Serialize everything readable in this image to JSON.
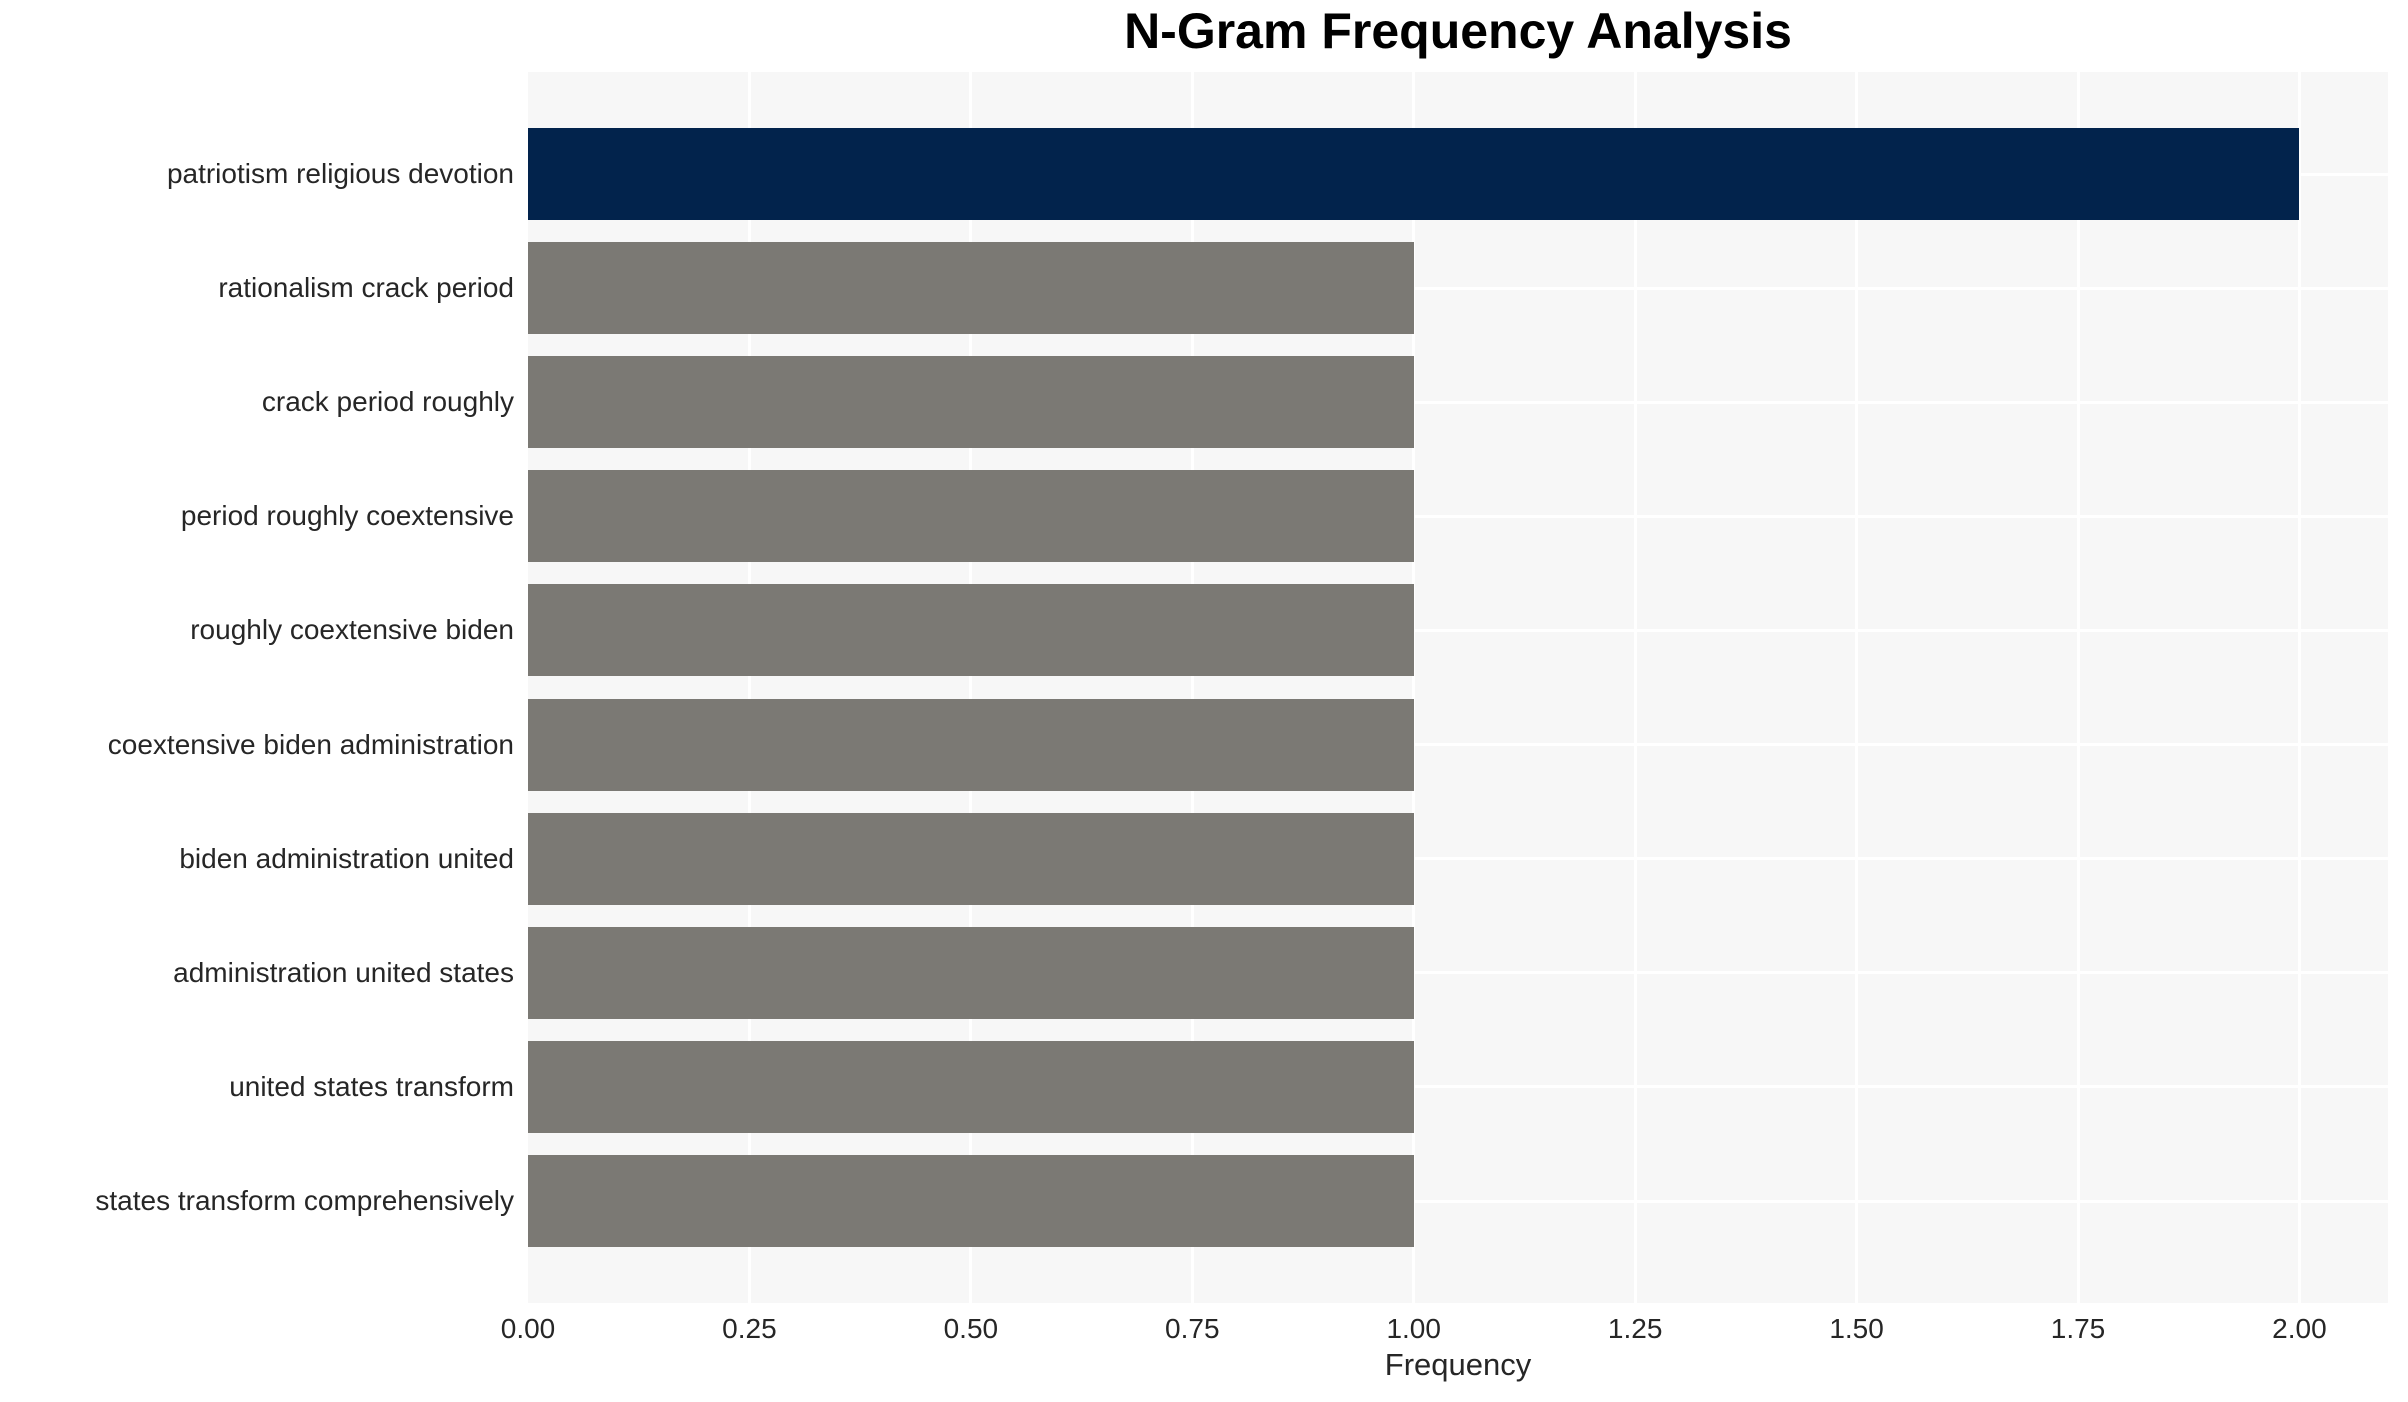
{
  "chart_data": {
    "type": "bar",
    "orientation": "horizontal",
    "title": "N-Gram Frequency Analysis",
    "xlabel": "Frequency",
    "ylabel": "",
    "categories": [
      "patriotism religious devotion",
      "rationalism crack period",
      "crack period roughly",
      "period roughly coextensive",
      "roughly coextensive biden",
      "coextensive biden administration",
      "biden administration united",
      "administration united states",
      "united states transform",
      "states transform comprehensively"
    ],
    "values": [
      2,
      1,
      1,
      1,
      1,
      1,
      1,
      1,
      1,
      1
    ],
    "bar_colors": [
      "#02234c",
      "#7b7974",
      "#7b7974",
      "#7b7974",
      "#7b7974",
      "#7b7974",
      "#7b7974",
      "#7b7974",
      "#7b7974",
      "#7b7974"
    ],
    "xlim": [
      0,
      2.1
    ],
    "xticks": [
      0,
      0.25,
      0.5,
      0.75,
      1.0,
      1.25,
      1.5,
      1.75,
      2.0
    ],
    "xtick_labels": [
      "0.00",
      "0.25",
      "0.50",
      "0.75",
      "1.00",
      "1.25",
      "1.50",
      "1.75",
      "2.00"
    ],
    "grid": true,
    "legend": false,
    "plot_background": "#f7f7f7",
    "grid_color": "#ffffff",
    "highlight_color": "#02234c",
    "default_bar_color": "#7b7974",
    "text_color": "#262626"
  }
}
